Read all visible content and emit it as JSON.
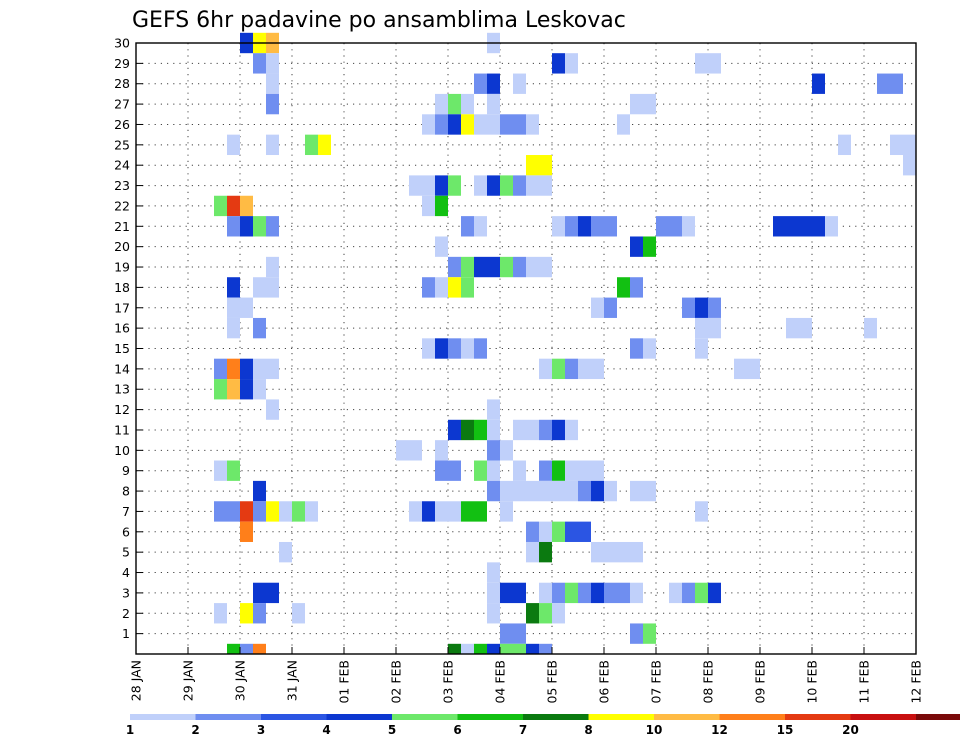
{
  "chart_data": {
    "type": "heatmap",
    "title": "GEFS 6hr padavine po ansamblima Leskovac",
    "xlabel": "",
    "ylabel": "",
    "x_ticks": [
      "28 JAN",
      "29 JAN",
      "30 JAN",
      "31 JAN",
      "01 FEB",
      "02 FEB",
      "03 FEB",
      "04 FEB",
      "05 FEB",
      "06 FEB",
      "07 FEB",
      "08 FEB",
      "09 FEB",
      "10 FEB",
      "11 FEB",
      "12 FEB"
    ],
    "y_ticks": [
      "1",
      "2",
      "3",
      "4",
      "5",
      "6",
      "7",
      "8",
      "9",
      "10",
      "11",
      "12",
      "13",
      "14",
      "15",
      "16",
      "17",
      "18",
      "19",
      "20",
      "21",
      "22",
      "23",
      "24",
      "25",
      "26",
      "27",
      "28",
      "29",
      "30"
    ],
    "xlim": [
      0,
      60
    ],
    "ylim": [
      0,
      30
    ],
    "grid": true,
    "levels": [
      "1",
      "2",
      "3",
      "4",
      "5",
      "6",
      "7",
      "8",
      "10",
      "12",
      "15",
      "20"
    ],
    "colors": [
      "#c0d0fa",
      "#6f8ef0",
      "#2b55e3",
      "#0c37d0",
      "#6de86a",
      "#12c012",
      "#0b7a10",
      "#ffff00",
      "#ffbb44",
      "#ff7f1a",
      "#e43a12",
      "#c81010",
      "#7a0a0a"
    ],
    "cells": [
      [
        8,
        30,
        3
      ],
      [
        9,
        30,
        7
      ],
      [
        10,
        30,
        8
      ],
      [
        27,
        30,
        0
      ],
      [
        9,
        29,
        1
      ],
      [
        10,
        29,
        0
      ],
      [
        32,
        29,
        3
      ],
      [
        33,
        29,
        0
      ],
      [
        43,
        29,
        0
      ],
      [
        44,
        29,
        0
      ],
      [
        10,
        28,
        0
      ],
      [
        26,
        28,
        1
      ],
      [
        27,
        28,
        3
      ],
      [
        29,
        28,
        0
      ],
      [
        52,
        28,
        3
      ],
      [
        57,
        28,
        1
      ],
      [
        58,
        28,
        1
      ],
      [
        10,
        27,
        1
      ],
      [
        23,
        27,
        0
      ],
      [
        24,
        27,
        4
      ],
      [
        25,
        27,
        0
      ],
      [
        27,
        27,
        0
      ],
      [
        38,
        27,
        0
      ],
      [
        39,
        27,
        0
      ],
      [
        22,
        26,
        0
      ],
      [
        23,
        26,
        1
      ],
      [
        24,
        26,
        3
      ],
      [
        25,
        26,
        7
      ],
      [
        26,
        26,
        0
      ],
      [
        27,
        26,
        0
      ],
      [
        28,
        26,
        1
      ],
      [
        29,
        26,
        1
      ],
      [
        30,
        26,
        0
      ],
      [
        37,
        26,
        0
      ],
      [
        7,
        25,
        0
      ],
      [
        10,
        25,
        0
      ],
      [
        13,
        25,
        4
      ],
      [
        14,
        25,
        7
      ],
      [
        54,
        25,
        0
      ],
      [
        58,
        25,
        0
      ],
      [
        59,
        25,
        0
      ],
      [
        30,
        24,
        7
      ],
      [
        31,
        24,
        7
      ],
      [
        59,
        24,
        0
      ],
      [
        21,
        23,
        0
      ],
      [
        22,
        23,
        0
      ],
      [
        23,
        23,
        3
      ],
      [
        24,
        23,
        4
      ],
      [
        26,
        23,
        0
      ],
      [
        27,
        23,
        3
      ],
      [
        28,
        23,
        4
      ],
      [
        29,
        23,
        1
      ],
      [
        30,
        23,
        0
      ],
      [
        31,
        23,
        0
      ],
      [
        6,
        22,
        4
      ],
      [
        7,
        22,
        10
      ],
      [
        8,
        22,
        8
      ],
      [
        22,
        22,
        0
      ],
      [
        23,
        22,
        5
      ],
      [
        7,
        21,
        1
      ],
      [
        8,
        21,
        3
      ],
      [
        9,
        21,
        4
      ],
      [
        10,
        21,
        1
      ],
      [
        25,
        21,
        1
      ],
      [
        26,
        21,
        0
      ],
      [
        32,
        21,
        0
      ],
      [
        33,
        21,
        1
      ],
      [
        34,
        21,
        3
      ],
      [
        35,
        21,
        1
      ],
      [
        36,
        21,
        1
      ],
      [
        40,
        21,
        1
      ],
      [
        41,
        21,
        1
      ],
      [
        42,
        21,
        0
      ],
      [
        49,
        21,
        3
      ],
      [
        50,
        21,
        3
      ],
      [
        51,
        21,
        3
      ],
      [
        52,
        21,
        3
      ],
      [
        53,
        21,
        0
      ],
      [
        23,
        20,
        0
      ],
      [
        38,
        20,
        3
      ],
      [
        39,
        20,
        5
      ],
      [
        10,
        19,
        0
      ],
      [
        24,
        19,
        1
      ],
      [
        25,
        19,
        4
      ],
      [
        26,
        19,
        3
      ],
      [
        27,
        19,
        3
      ],
      [
        28,
        19,
        4
      ],
      [
        29,
        19,
        1
      ],
      [
        30,
        19,
        0
      ],
      [
        31,
        19,
        0
      ],
      [
        7,
        18,
        3
      ],
      [
        9,
        18,
        0
      ],
      [
        10,
        18,
        0
      ],
      [
        22,
        18,
        1
      ],
      [
        23,
        18,
        0
      ],
      [
        24,
        18,
        7
      ],
      [
        25,
        18,
        4
      ],
      [
        37,
        18,
        5
      ],
      [
        38,
        18,
        1
      ],
      [
        7,
        17,
        0
      ],
      [
        8,
        17,
        0
      ],
      [
        35,
        17,
        0
      ],
      [
        36,
        17,
        1
      ],
      [
        42,
        17,
        1
      ],
      [
        43,
        17,
        3
      ],
      [
        44,
        17,
        1
      ],
      [
        7,
        16,
        0
      ],
      [
        9,
        16,
        1
      ],
      [
        43,
        16,
        0
      ],
      [
        44,
        16,
        0
      ],
      [
        50,
        16,
        0
      ],
      [
        51,
        16,
        0
      ],
      [
        56,
        16,
        0
      ],
      [
        22,
        15,
        0
      ],
      [
        23,
        15,
        3
      ],
      [
        24,
        15,
        1
      ],
      [
        25,
        15,
        0
      ],
      [
        26,
        15,
        1
      ],
      [
        38,
        15,
        1
      ],
      [
        39,
        15,
        0
      ],
      [
        43,
        15,
        0
      ],
      [
        6,
        14,
        1
      ],
      [
        7,
        14,
        9
      ],
      [
        8,
        14,
        3
      ],
      [
        9,
        14,
        0
      ],
      [
        10,
        14,
        0
      ],
      [
        31,
        14,
        0
      ],
      [
        32,
        14,
        4
      ],
      [
        33,
        14,
        1
      ],
      [
        34,
        14,
        0
      ],
      [
        35,
        14,
        0
      ],
      [
        46,
        14,
        0
      ],
      [
        47,
        14,
        0
      ],
      [
        6,
        13,
        4
      ],
      [
        7,
        13,
        8
      ],
      [
        8,
        13,
        3
      ],
      [
        9,
        13,
        0
      ],
      [
        10,
        12,
        0
      ],
      [
        27,
        12,
        0
      ],
      [
        24,
        11,
        3
      ],
      [
        25,
        11,
        6
      ],
      [
        26,
        11,
        5
      ],
      [
        27,
        11,
        0
      ],
      [
        29,
        11,
        0
      ],
      [
        30,
        11,
        0
      ],
      [
        31,
        11,
        1
      ],
      [
        32,
        11,
        3
      ],
      [
        33,
        11,
        0
      ],
      [
        20,
        10,
        0
      ],
      [
        21,
        10,
        0
      ],
      [
        23,
        10,
        0
      ],
      [
        27,
        10,
        1
      ],
      [
        28,
        10,
        0
      ],
      [
        6,
        9,
        0
      ],
      [
        7,
        9,
        4
      ],
      [
        23,
        9,
        1
      ],
      [
        24,
        9,
        1
      ],
      [
        26,
        9,
        4
      ],
      [
        27,
        9,
        0
      ],
      [
        29,
        9,
        0
      ],
      [
        31,
        9,
        1
      ],
      [
        32,
        9,
        5
      ],
      [
        33,
        9,
        0
      ],
      [
        34,
        9,
        0
      ],
      [
        35,
        9,
        0
      ],
      [
        9,
        8,
        3
      ],
      [
        27,
        8,
        1
      ],
      [
        28,
        8,
        0
      ],
      [
        29,
        8,
        0
      ],
      [
        30,
        8,
        0
      ],
      [
        31,
        8,
        0
      ],
      [
        32,
        8,
        0
      ],
      [
        33,
        8,
        0
      ],
      [
        34,
        8,
        1
      ],
      [
        35,
        8,
        3
      ],
      [
        36,
        8,
        0
      ],
      [
        38,
        8,
        0
      ],
      [
        39,
        8,
        0
      ],
      [
        6,
        7,
        1
      ],
      [
        7,
        7,
        1
      ],
      [
        8,
        7,
        10
      ],
      [
        9,
        7,
        1
      ],
      [
        10,
        7,
        7
      ],
      [
        11,
        7,
        0
      ],
      [
        12,
        7,
        4
      ],
      [
        13,
        7,
        0
      ],
      [
        21,
        7,
        0
      ],
      [
        22,
        7,
        3
      ],
      [
        23,
        7,
        0
      ],
      [
        24,
        7,
        0
      ],
      [
        25,
        7,
        5
      ],
      [
        26,
        7,
        5
      ],
      [
        28,
        7,
        0
      ],
      [
        43,
        7,
        0
      ],
      [
        8,
        6,
        9
      ],
      [
        30,
        6,
        1
      ],
      [
        31,
        6,
        0
      ],
      [
        32,
        6,
        4
      ],
      [
        33,
        6,
        2
      ],
      [
        34,
        6,
        2
      ],
      [
        11,
        5,
        0
      ],
      [
        30,
        5,
        0
      ],
      [
        31,
        5,
        6
      ],
      [
        35,
        5,
        0
      ],
      [
        36,
        5,
        0
      ],
      [
        37,
        5,
        0
      ],
      [
        38,
        5,
        0
      ],
      [
        27,
        4,
        0
      ],
      [
        9,
        3,
        3
      ],
      [
        10,
        3,
        3
      ],
      [
        27,
        3,
        0
      ],
      [
        28,
        3,
        3
      ],
      [
        29,
        3,
        3
      ],
      [
        31,
        3,
        0
      ],
      [
        32,
        3,
        1
      ],
      [
        33,
        3,
        4
      ],
      [
        34,
        3,
        1
      ],
      [
        35,
        3,
        3
      ],
      [
        36,
        3,
        1
      ],
      [
        37,
        3,
        1
      ],
      [
        38,
        3,
        0
      ],
      [
        41,
        3,
        0
      ],
      [
        42,
        3,
        1
      ],
      [
        43,
        3,
        4
      ],
      [
        44,
        3,
        3
      ],
      [
        6,
        2,
        0
      ],
      [
        8,
        2,
        7
      ],
      [
        9,
        2,
        1
      ],
      [
        12,
        2,
        0
      ],
      [
        27,
        2,
        0
      ],
      [
        30,
        2,
        6
      ],
      [
        31,
        2,
        4
      ],
      [
        32,
        2,
        0
      ],
      [
        28,
        1,
        1
      ],
      [
        29,
        1,
        1
      ],
      [
        38,
        1,
        1
      ],
      [
        39,
        1,
        4
      ],
      [
        7,
        0,
        5
      ],
      [
        8,
        0,
        1
      ],
      [
        9,
        0,
        9
      ],
      [
        24,
        0,
        6
      ],
      [
        25,
        0,
        0
      ],
      [
        26,
        0,
        5
      ],
      [
        27,
        0,
        3
      ],
      [
        28,
        0,
        4
      ],
      [
        29,
        0,
        4
      ],
      [
        30,
        0,
        3
      ],
      [
        31,
        0,
        1
      ]
    ]
  }
}
